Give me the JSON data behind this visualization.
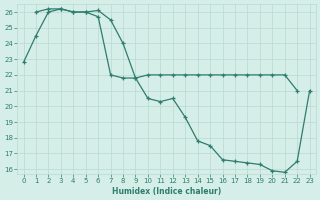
{
  "xlabel": "Humidex (Indice chaleur)",
  "line1_x": [
    0,
    1,
    2,
    3,
    4,
    5,
    6,
    7,
    8,
    9,
    10,
    11,
    12,
    13,
    14,
    15,
    16,
    17,
    18,
    19,
    20,
    21,
    22,
    23
  ],
  "line1_y": [
    22.8,
    24.5,
    26.0,
    26.2,
    26.0,
    26.0,
    26.1,
    25.5,
    24.0,
    21.8,
    20.5,
    20.3,
    20.5,
    19.3,
    17.8,
    17.5,
    16.6,
    16.5,
    16.4,
    16.3,
    15.9,
    15.8,
    16.5,
    21.0
  ],
  "line2_x": [
    1,
    2,
    3,
    4,
    5,
    6,
    7,
    8,
    9,
    10,
    11,
    12,
    13,
    14,
    15,
    16,
    17,
    18,
    19,
    20,
    21,
    22
  ],
  "line2_y": [
    26.0,
    26.2,
    26.2,
    26.0,
    26.0,
    25.7,
    22.0,
    21.8,
    21.8,
    22.0,
    22.0,
    22.0,
    22.0,
    22.0,
    22.0,
    22.0,
    22.0,
    22.0,
    22.0,
    22.0,
    22.0,
    21.0
  ],
  "line_color": "#2E7D6E",
  "bg_color": "#D6EEE8",
  "grid_color": "#B8D8D2",
  "ylim_min": 15.7,
  "ylim_max": 26.5,
  "xlim_min": -0.5,
  "xlim_max": 23.5,
  "yticks": [
    16,
    17,
    18,
    19,
    20,
    21,
    22,
    23,
    24,
    25,
    26
  ],
  "xticks": [
    0,
    1,
    2,
    3,
    4,
    5,
    6,
    7,
    8,
    9,
    10,
    11,
    12,
    13,
    14,
    15,
    16,
    17,
    18,
    19,
    20,
    21,
    22,
    23
  ]
}
